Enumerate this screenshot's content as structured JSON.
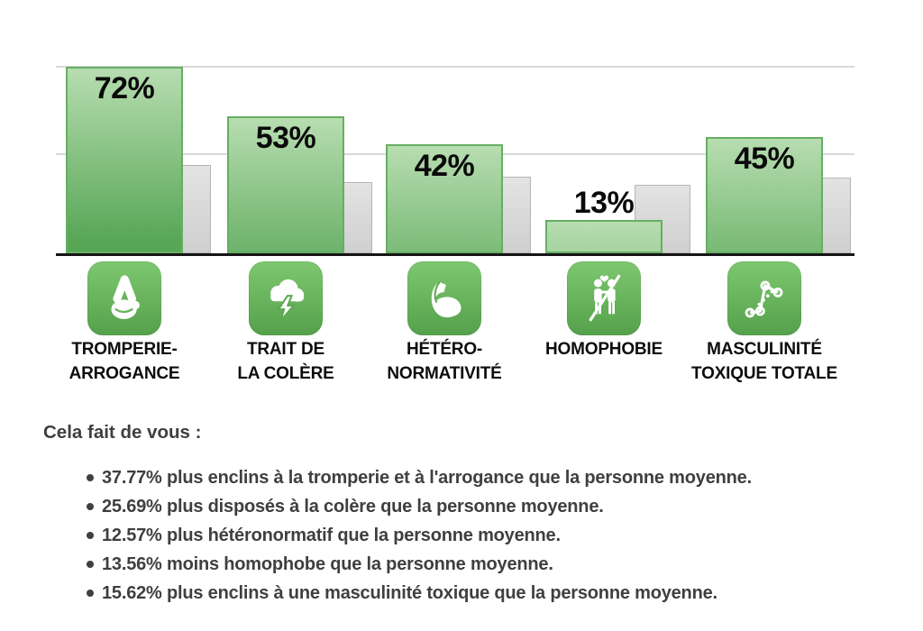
{
  "chart_data": {
    "type": "bar",
    "categories": [
      "TROMPERIE-ARROGANCE",
      "TRAIT DE LA COLÈRE",
      "HÉTÉRO-NORMATIVITÉ",
      "HOMOPHOBIE",
      "MASCULINITÉ TOXIQUE TOTALE"
    ],
    "series": [
      {
        "name": "user_score",
        "values": [
          72,
          53,
          42,
          13,
          45
        ],
        "color_top": "#b7ddb0",
        "color_bottom": "#57a656"
      },
      {
        "name": "average_person",
        "values": [
          34.23,
          27.31,
          29.43,
          26.56,
          29.38
        ],
        "color": "#d9d9d9"
      }
    ],
    "data_labels": [
      "72%",
      "53%",
      "42%",
      "13%",
      "45%"
    ],
    "title": "",
    "xlabel": "",
    "ylabel": "",
    "ylim": [
      0,
      100
    ],
    "grid": true,
    "legend": "none"
  },
  "categories": [
    {
      "icon": "crossed-fingers",
      "percent_label": "72%",
      "value": 72,
      "average": 34.23,
      "label_lines": [
        "TROMPERIE-",
        "ARROGANCE"
      ]
    },
    {
      "icon": "storm-cloud",
      "percent_label": "53%",
      "value": 53,
      "average": 27.31,
      "label_lines": [
        "TRAIT DE",
        "LA COLÈRE"
      ]
    },
    {
      "icon": "flexed-bicep",
      "percent_label": "42%",
      "value": 42,
      "average": 29.43,
      "label_lines": [
        "HÉTÉRO-",
        "NORMATIVITÉ"
      ]
    },
    {
      "icon": "no-same-sex-couple",
      "percent_label": "13%",
      "value": 13,
      "average": 26.56,
      "label_lines": [
        "HOMOPHOBIE"
      ]
    },
    {
      "icon": "line-chart",
      "percent_label": "45%",
      "value": 45,
      "average": 29.38,
      "label_lines": [
        "MASCULINITÉ",
        "TOXIQUE TOTALE"
      ]
    }
  ],
  "summary": {
    "title": "Cela fait de vous :",
    "bullets": [
      "37.77% plus enclins à la tromperie et à l'arrogance que la personne moyenne.",
      "25.69% plus disposés à la colère que la personne moyenne.",
      "12.57% plus hétéronormatif que la personne moyenne.",
      "13.56% moins homophobe que la personne moyenne.",
      "15.62% plus enclins à une masculinité toxique que la personne moyenne."
    ]
  },
  "colors": {
    "green_top": "#b7ddb0",
    "green_bottom": "#57a656",
    "green_border": "#66af63",
    "icon_green_top": "#7dc76f",
    "icon_green_bottom": "#55a14b",
    "gray_bar": "#d9d9d9",
    "gray_border": "#b5b5b5",
    "gridline": "#d9d9d9",
    "axis": "#151515",
    "text_dark": "#3f3f3f"
  }
}
